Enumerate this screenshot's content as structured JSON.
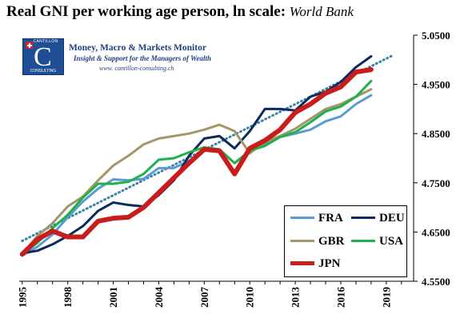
{
  "header": {
    "title": "Real GNI per working age person, ln scale:",
    "source": "World Bank"
  },
  "banner": {
    "logo_top_text": "CANTILLON",
    "logo_letter": "C",
    "logo_bottom_text": "CONSULTING",
    "name": "Money, Macro & Markets Monitor",
    "tagline": "Insight & Support for the Managers of Wealth",
    "website": "www. cantillon-consulting.ch"
  },
  "colors": {
    "FRA": "#5b9bd5",
    "DEU": "#0d2a5e",
    "GBR": "#a39669",
    "USA": "#1fb14c",
    "JPN": "#c91c1c",
    "trend": "#3a83a6"
  },
  "chart_data": {
    "type": "line",
    "x": [
      1995,
      1996,
      1997,
      1998,
      1999,
      2000,
      2001,
      2002,
      2003,
      2004,
      2005,
      2006,
      2007,
      2008,
      2009,
      2010,
      2011,
      2012,
      2013,
      2014,
      2015,
      2016,
      2017,
      2018
    ],
    "xlim": [
      1994.8,
      2020.8
    ],
    "ylim": [
      4.55,
      5.05
    ],
    "y_scale": "ln",
    "xticks": [
      1995,
      1998,
      2001,
      2004,
      2007,
      2010,
      2013,
      2016,
      2019
    ],
    "yticks": [
      4.55,
      4.65,
      4.75,
      4.85,
      4.95,
      5.05
    ],
    "ytick_labels": [
      "4.5500",
      "4.6500",
      "4.7500",
      "4.8500",
      "4.9500",
      "5.0500"
    ],
    "grid": false,
    "legend_position": "bottom-right",
    "series": [
      {
        "name": "FRA",
        "values": [
          4.602,
          4.62,
          4.645,
          4.68,
          4.712,
          4.738,
          4.757,
          4.755,
          4.758,
          4.78,
          4.78,
          4.795,
          4.815,
          4.817,
          4.79,
          4.815,
          4.83,
          4.843,
          4.85,
          4.858,
          4.875,
          4.885,
          4.91,
          4.928
        ]
      },
      {
        "name": "DEU",
        "values": [
          4.607,
          4.612,
          4.625,
          4.642,
          4.662,
          4.693,
          4.71,
          4.705,
          4.702,
          4.725,
          4.755,
          4.805,
          4.84,
          4.845,
          4.82,
          4.855,
          4.9,
          4.9,
          4.897,
          4.925,
          4.935,
          4.955,
          4.985,
          5.007
        ]
      },
      {
        "name": "GBR",
        "values": [
          4.605,
          4.642,
          4.668,
          4.702,
          4.722,
          4.755,
          4.785,
          4.805,
          4.828,
          4.84,
          4.845,
          4.85,
          4.858,
          4.868,
          4.855,
          4.81,
          4.833,
          4.845,
          4.86,
          4.88,
          4.9,
          4.91,
          4.925,
          4.94
        ]
      },
      {
        "name": "USA",
        "values": [
          4.605,
          4.628,
          4.658,
          4.685,
          4.72,
          4.748,
          4.748,
          4.752,
          4.768,
          4.797,
          4.8,
          4.812,
          4.822,
          4.818,
          4.79,
          4.815,
          4.825,
          4.843,
          4.853,
          4.873,
          4.895,
          4.905,
          4.925,
          4.957
        ]
      },
      {
        "name": "JPN",
        "values": [
          4.605,
          4.635,
          4.652,
          4.64,
          4.64,
          4.672,
          4.678,
          4.68,
          4.7,
          4.73,
          4.76,
          4.79,
          4.818,
          4.815,
          4.768,
          4.82,
          4.836,
          4.858,
          4.893,
          4.91,
          4.932,
          4.945,
          4.975,
          4.98
        ]
      }
    ],
    "trendline": {
      "series": "JPN",
      "style": "dotted",
      "values": [
        4.632,
        5.01
      ]
    }
  }
}
